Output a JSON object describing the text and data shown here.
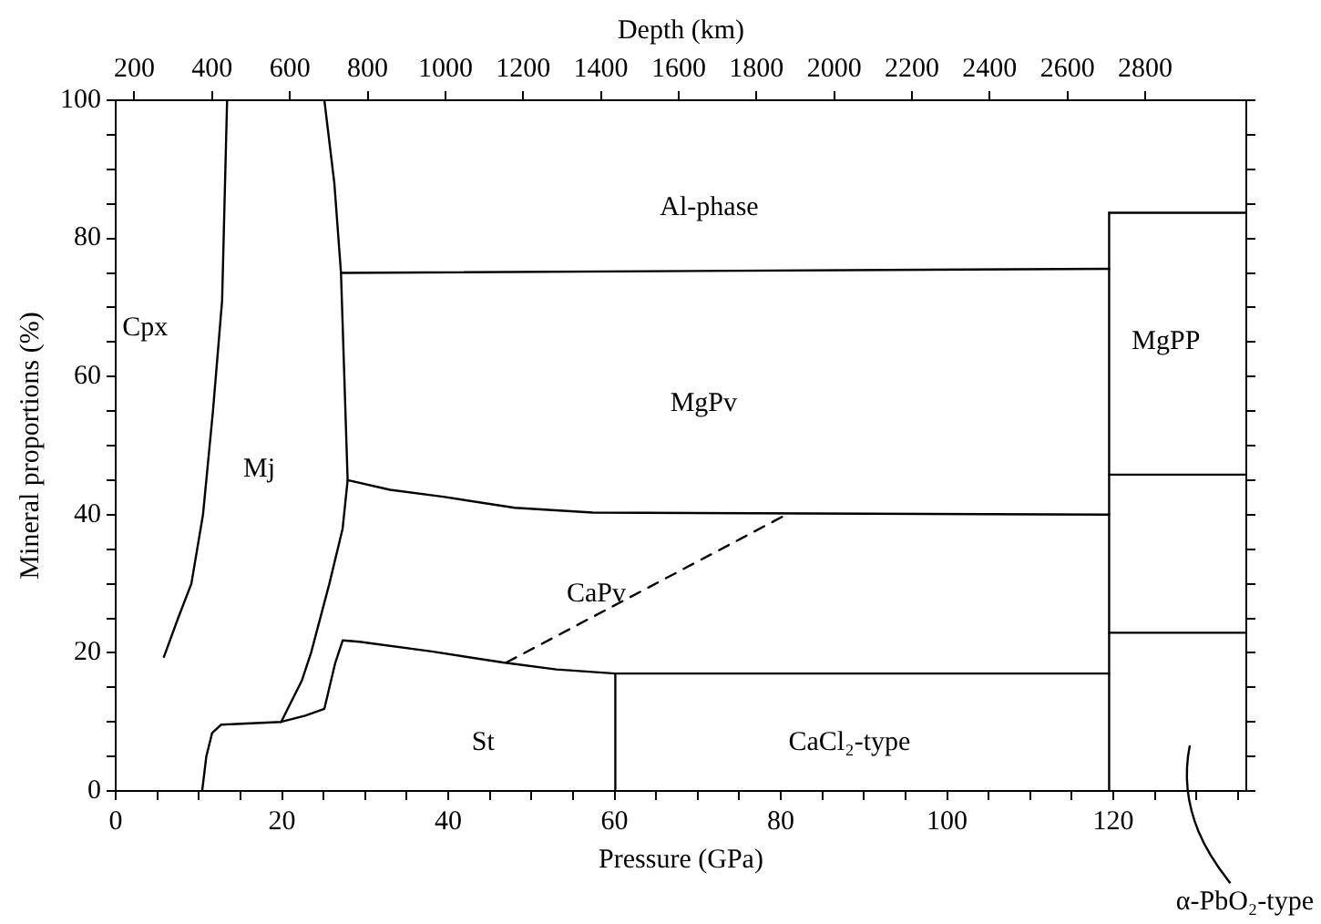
{
  "chart_data": {
    "type": "line",
    "xlabel": "Pressure (GPa)",
    "ylabel": "Mineral proportions (%)",
    "x2label": "Depth (km)",
    "xlim": [
      0,
      136
    ],
    "ylim": [
      0,
      100
    ],
    "x2lim": [
      152,
      3060
    ],
    "xticks": [
      0,
      {
        "value": 5,
        "label": null
      },
      {
        "value": 10,
        "label": null
      },
      {
        "value": 15,
        "label": null
      },
      20,
      {
        "value": 25,
        "label": null
      },
      {
        "value": 30,
        "label": null
      },
      {
        "value": 35,
        "label": null
      },
      40,
      {
        "value": 45,
        "label": null
      },
      {
        "value": 50,
        "label": null
      },
      {
        "value": 55,
        "label": null
      },
      60,
      {
        "value": 65,
        "label": null
      },
      {
        "value": 70,
        "label": null
      },
      {
        "value": 75,
        "label": null
      },
      80,
      {
        "value": 85,
        "label": null
      },
      {
        "value": 90,
        "label": null
      },
      {
        "value": 95,
        "label": null
      },
      100,
      {
        "value": 105,
        "label": null
      },
      {
        "value": 110,
        "label": null
      },
      {
        "value": 115,
        "label": null
      },
      120,
      {
        "value": 125,
        "label": null
      },
      {
        "value": 130,
        "label": null
      },
      {
        "value": 135,
        "label": null
      }
    ],
    "yticks": [
      0,
      {
        "value": 5,
        "label": null
      },
      {
        "value": 10,
        "label": null
      },
      {
        "value": 15,
        "label": null
      },
      20,
      {
        "value": 25,
        "label": null
      },
      {
        "value": 30,
        "label": null
      },
      {
        "value": 35,
        "label": null
      },
      40,
      {
        "value": 45,
        "label": null
      },
      {
        "value": 50,
        "label": null
      },
      {
        "value": 55,
        "label": null
      },
      60,
      {
        "value": 65,
        "label": null
      },
      {
        "value": 70,
        "label": null
      },
      {
        "value": 75,
        "label": null
      },
      80,
      {
        "value": 85,
        "label": null
      },
      {
        "value": 90,
        "label": null
      },
      {
        "value": 95,
        "label": null
      },
      100
    ],
    "x2ticks": [
      200,
      400,
      600,
      800,
      1000,
      1200,
      1400,
      1600,
      1800,
      2000,
      2200,
      2400,
      2600,
      2800
    ],
    "grid": false,
    "legend": false,
    "marker": "none",
    "line_style": "solid",
    "series": [
      {
        "color": "#000000",
        "x": [
          5.8,
          7.5,
          9.1,
          10.5,
          11.7,
          12.8,
          13.4
        ],
        "values": [
          19.4,
          25,
          30,
          40,
          55,
          71,
          100
        ]
      },
      {
        "color": "#000000",
        "x": [
          25.1,
          26.3,
          27.1,
          27.9,
          27.3,
          25.7,
          23.5,
          22.4,
          19.9
        ],
        "values": [
          100,
          88,
          75,
          45,
          38,
          30,
          20,
          16,
          10
        ]
      },
      {
        "color": "#000000",
        "x": [
          10.4,
          10.9,
          11.6,
          12.7,
          19.9,
          22.8,
          25.1,
          26.4,
          27.3,
          29.3,
          38,
          46.6,
          53,
          60.1,
          119.5
        ],
        "values": [
          0,
          5,
          8.4,
          9.6,
          10,
          10.9,
          11.9,
          18.5,
          21.8,
          21.6,
          20.2,
          18.6,
          17.6,
          17,
          17
        ]
      },
      {
        "color": "#000000",
        "x": [
          60.1,
          60.1
        ],
        "values": [
          0,
          17
        ]
      },
      {
        "color": "#000000",
        "x": [
          27.9,
          33,
          39.4,
          48,
          57.4,
          119.5
        ],
        "values": [
          45,
          43.6,
          42.6,
          41,
          40.3,
          40
        ]
      },
      {
        "color": "#000000",
        "x": [
          27.1,
          119.5
        ],
        "values": [
          75,
          75.6
        ]
      },
      {
        "color": "#000000",
        "x": [
          119.5,
          119.5
        ],
        "values": [
          0,
          83.7
        ]
      },
      {
        "color": "#000000",
        "x": [
          119.5,
          136
        ],
        "values": [
          83.7,
          83.7
        ]
      },
      {
        "color": "#000000",
        "x": [
          119.5,
          136
        ],
        "values": [
          45.8,
          45.8
        ]
      },
      {
        "color": "#000000",
        "x": [
          119.5,
          136
        ],
        "values": [
          22.9,
          22.9
        ]
      },
      {
        "color": "#000000",
        "line_style": "dashed",
        "x": [
          47,
          80.5
        ],
        "values": [
          18.6,
          39.9
        ]
      }
    ],
    "annotations": [
      "Cpx",
      "Mj",
      "Al-phase",
      "MgPv",
      "MgPP",
      "CaPv",
      "St",
      "CaCl₂-type",
      "α-PbO₂-type"
    ]
  }
}
